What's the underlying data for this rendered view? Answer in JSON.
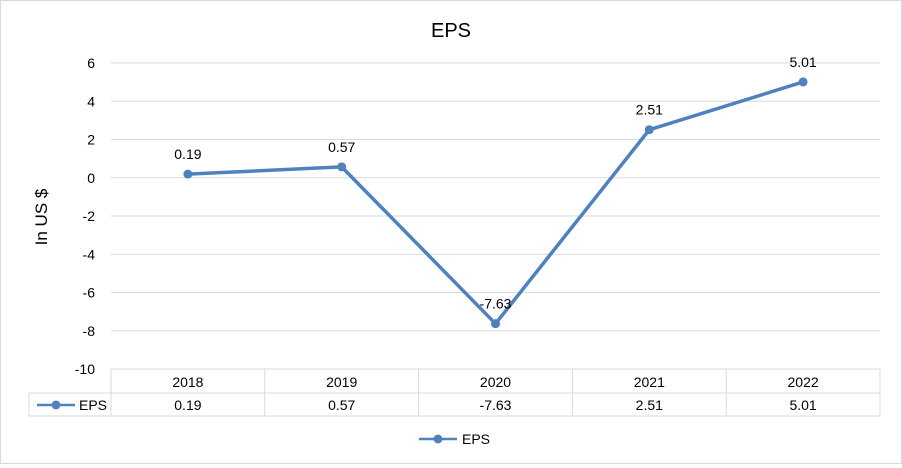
{
  "chart_data": {
    "type": "line",
    "title": "EPS",
    "ylabel": "In US $",
    "xlabel": "",
    "categories": [
      "2018",
      "2019",
      "2020",
      "2021",
      "2022"
    ],
    "series": [
      {
        "name": "EPS",
        "values": [
          0.19,
          0.57,
          -7.63,
          2.51,
          5.01
        ],
        "labels": [
          "0.19",
          "0.57",
          "-7.63",
          "2.51",
          "5.01"
        ],
        "color": "#4f81bd"
      }
    ],
    "ylim": [
      -10,
      6
    ],
    "yticks": [
      6,
      4,
      2,
      0,
      -2,
      -4,
      -6,
      -8,
      -10
    ],
    "ytick_labels": [
      "6",
      "4",
      "2",
      "0",
      "-2",
      "-4",
      "-6",
      "-8",
      "-10"
    ],
    "grid": true,
    "data_table": true,
    "legend": {
      "position": "bottom",
      "entries": [
        "EPS"
      ]
    },
    "colors": {
      "series": "#4f81bd",
      "grid": "#d9d9d9",
      "frame": "#d9d9d9"
    }
  }
}
